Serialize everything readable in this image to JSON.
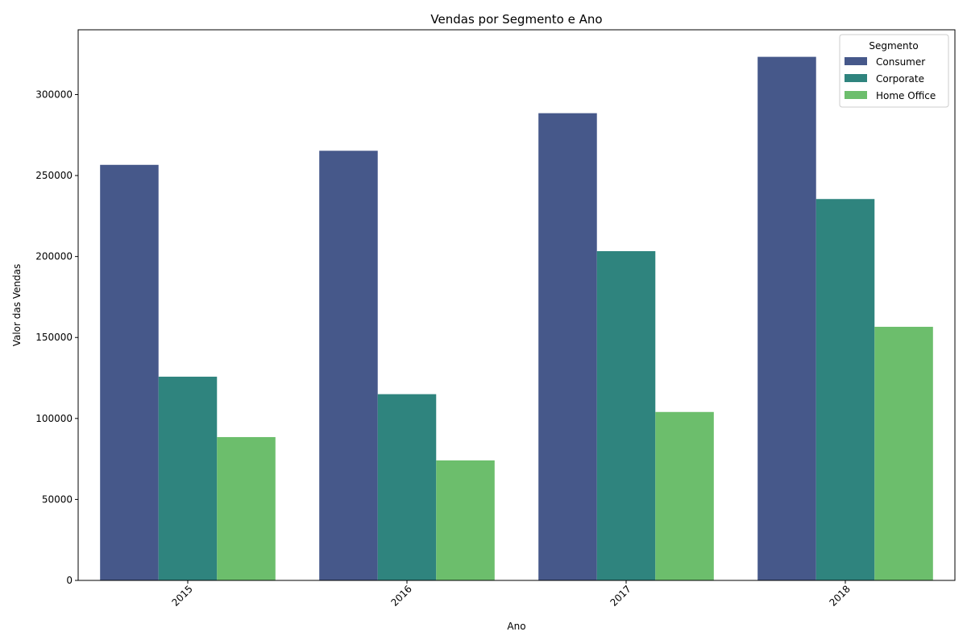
{
  "chart_data": {
    "type": "bar",
    "title": "Vendas por Segmento e Ano",
    "xlabel": "Ano",
    "ylabel": "Valor das Vendas",
    "categories": [
      "2015",
      "2016",
      "2017",
      "2018"
    ],
    "ylim": [
      0,
      340000
    ],
    "yticks": [
      0,
      50000,
      100000,
      150000,
      200000,
      250000,
      300000
    ],
    "grid": false,
    "legend": {
      "title": "Segmento",
      "placement": "top-right"
    },
    "series": [
      {
        "name": "Consumer",
        "color": "#46588a",
        "values": [
          256600,
          265300,
          288500,
          323300
        ]
      },
      {
        "name": "Corporate",
        "color": "#2f847e",
        "values": [
          125800,
          115000,
          203300,
          235500
        ]
      },
      {
        "name": "Home Office",
        "color": "#6cbe6c",
        "values": [
          88500,
          74100,
          104000,
          156600
        ]
      }
    ]
  }
}
